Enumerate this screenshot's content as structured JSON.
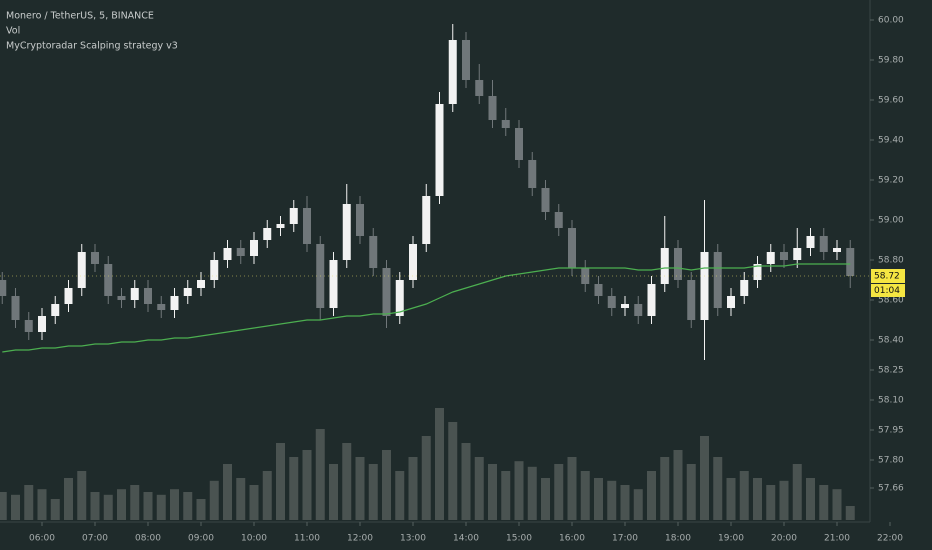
{
  "chart_data": {
    "type": "candlestick",
    "title": "Monero / TetherUS, 5, BINANCE",
    "indicators": [
      "Vol",
      "MyCryptoradar Scalping strategy v3"
    ],
    "categories": [
      null,
      null,
      null,
      "06:00",
      null,
      null,
      null,
      "07:00",
      null,
      null,
      null,
      "08:00",
      null,
      null,
      null,
      "09:00",
      null,
      null,
      null,
      "10:00",
      null,
      null,
      null,
      "11:00",
      null,
      null,
      null,
      "12:00",
      null,
      null,
      null,
      "13:00",
      null,
      null,
      null,
      "14:00",
      null,
      null,
      null,
      "15:00",
      null,
      null,
      null,
      "16:00",
      null,
      null,
      null,
      "17:00",
      null,
      null,
      null,
      "18:00",
      null,
      null,
      null,
      "19:00",
      null,
      null,
      null,
      "20:00",
      null,
      null,
      null,
      "21:00",
      null,
      null,
      null,
      "22:00"
    ],
    "open": [
      58.7,
      58.62,
      58.5,
      58.44,
      58.52,
      58.58,
      58.66,
      58.84,
      58.78,
      58.62,
      58.6,
      58.66,
      58.58,
      58.55,
      58.62,
      58.66,
      58.7,
      58.8,
      58.86,
      58.82,
      58.9,
      58.96,
      58.98,
      59.06,
      58.88,
      58.56,
      58.8,
      59.08,
      58.92,
      58.76,
      58.52,
      58.7,
      58.88,
      59.12,
      59.58,
      59.9,
      59.7,
      59.62,
      59.5,
      59.46,
      59.3,
      59.16,
      59.04,
      58.96,
      58.76,
      58.68,
      58.62,
      58.56,
      58.58,
      58.52,
      58.68,
      58.86,
      58.7,
      58.5,
      58.84,
      58.56,
      58.62,
      58.7,
      58.78,
      58.84,
      58.8,
      58.86,
      58.92,
      58.84,
      58.86,
      null,
      null,
      null
    ],
    "high": [
      58.74,
      58.66,
      58.54,
      58.56,
      58.62,
      58.7,
      58.88,
      58.88,
      58.82,
      58.66,
      58.7,
      58.7,
      58.62,
      58.66,
      58.7,
      58.74,
      58.84,
      58.9,
      58.9,
      58.94,
      59.0,
      59.02,
      59.1,
      59.12,
      58.92,
      58.84,
      59.18,
      59.12,
      58.96,
      58.8,
      58.74,
      58.92,
      59.18,
      59.64,
      59.98,
      59.94,
      59.78,
      59.7,
      59.56,
      59.5,
      59.34,
      59.2,
      59.08,
      59.0,
      58.8,
      58.72,
      58.66,
      58.62,
      58.62,
      58.72,
      59.02,
      58.9,
      58.74,
      59.1,
      58.88,
      58.66,
      58.74,
      58.82,
      58.88,
      58.88,
      58.96,
      58.96,
      58.96,
      58.9,
      58.9,
      null,
      null,
      null
    ],
    "low": [
      58.58,
      58.46,
      58.4,
      58.4,
      58.48,
      58.54,
      58.62,
      58.74,
      58.58,
      58.56,
      58.56,
      58.54,
      58.51,
      58.51,
      58.58,
      58.62,
      58.66,
      58.76,
      58.78,
      58.78,
      58.86,
      58.92,
      58.94,
      58.84,
      58.5,
      58.52,
      58.76,
      58.88,
      58.72,
      58.46,
      58.48,
      58.66,
      58.84,
      59.08,
      59.54,
      59.66,
      59.58,
      59.46,
      59.42,
      59.26,
      59.12,
      59.0,
      58.92,
      58.72,
      58.64,
      58.58,
      58.52,
      58.52,
      58.48,
      58.48,
      58.64,
      58.66,
      58.46,
      58.3,
      58.52,
      58.52,
      58.58,
      58.66,
      58.74,
      58.76,
      58.76,
      58.82,
      58.8,
      58.8,
      58.66,
      null,
      null,
      null
    ],
    "close": [
      58.62,
      58.5,
      58.44,
      58.52,
      58.58,
      58.66,
      58.84,
      58.78,
      58.62,
      58.6,
      58.66,
      58.58,
      58.55,
      58.62,
      58.66,
      58.7,
      58.8,
      58.86,
      58.82,
      58.9,
      58.96,
      58.98,
      59.06,
      58.88,
      58.56,
      58.8,
      59.08,
      58.92,
      58.76,
      58.52,
      58.7,
      58.88,
      59.12,
      59.58,
      59.9,
      59.7,
      59.62,
      59.5,
      59.46,
      59.3,
      59.16,
      59.04,
      58.96,
      58.76,
      58.68,
      58.62,
      58.56,
      58.58,
      58.52,
      58.68,
      58.86,
      58.7,
      58.5,
      58.84,
      58.56,
      58.62,
      58.7,
      58.78,
      58.84,
      58.8,
      58.86,
      58.92,
      58.84,
      58.86,
      58.72,
      null,
      null,
      null
    ],
    "up_color": "#f2f2f2",
    "down_color": "#70777a",
    "volume": {
      "color": "#59615f",
      "values": [
        20,
        18,
        25,
        22,
        15,
        30,
        35,
        20,
        18,
        22,
        25,
        20,
        18,
        22,
        20,
        15,
        28,
        40,
        30,
        25,
        35,
        55,
        45,
        50,
        65,
        40,
        55,
        45,
        40,
        50,
        35,
        45,
        60,
        80,
        70,
        55,
        45,
        40,
        35,
        42,
        38,
        30,
        40,
        45,
        35,
        30,
        28,
        25,
        22,
        35,
        45,
        50,
        40,
        60,
        45,
        30,
        35,
        30,
        25,
        28,
        40,
        30,
        25,
        22,
        10,
        null,
        null,
        null
      ]
    },
    "ma": {
      "color": "#4caf50",
      "values": [
        58.34,
        58.35,
        58.35,
        58.36,
        58.36,
        58.37,
        58.37,
        58.38,
        58.38,
        58.39,
        58.39,
        58.4,
        58.4,
        58.41,
        58.41,
        58.42,
        58.43,
        58.44,
        58.45,
        58.46,
        58.47,
        58.48,
        58.49,
        58.5,
        58.5,
        58.51,
        58.52,
        58.52,
        58.53,
        58.53,
        58.54,
        58.56,
        58.58,
        58.61,
        58.64,
        58.66,
        58.68,
        58.7,
        58.72,
        58.73,
        58.74,
        58.75,
        58.76,
        58.76,
        58.76,
        58.76,
        58.76,
        58.76,
        58.75,
        58.75,
        58.76,
        58.76,
        58.75,
        58.76,
        58.76,
        58.76,
        58.76,
        58.77,
        58.77,
        58.77,
        58.78,
        58.78,
        58.78,
        58.78,
        58.78,
        null,
        null,
        null
      ]
    },
    "ylim": [
      57.5,
      60.1
    ],
    "yticks": [
      {
        "value": 60,
        "label": "60.00"
      },
      {
        "value": 59.8,
        "label": "59.80"
      },
      {
        "value": 59.6,
        "label": "59.60"
      },
      {
        "value": 59.4,
        "label": "59.40"
      },
      {
        "value": 59.2,
        "label": "59.20"
      },
      {
        "value": 59,
        "label": "59.00"
      },
      {
        "value": 58.8,
        "label": "58.80"
      },
      {
        "value": 58.6,
        "label": "58.60"
      },
      {
        "value": 58.4,
        "label": "58.40"
      },
      {
        "value": 58.25,
        "label": "58.25"
      },
      {
        "value": 58.1,
        "label": "58.10"
      },
      {
        "value": 57.95,
        "label": "57.95"
      },
      {
        "value": 57.8,
        "label": "57.80"
      },
      {
        "value": 57.66,
        "label": "57.66"
      }
    ],
    "last_price": 58.72,
    "countdown": "01:04"
  }
}
